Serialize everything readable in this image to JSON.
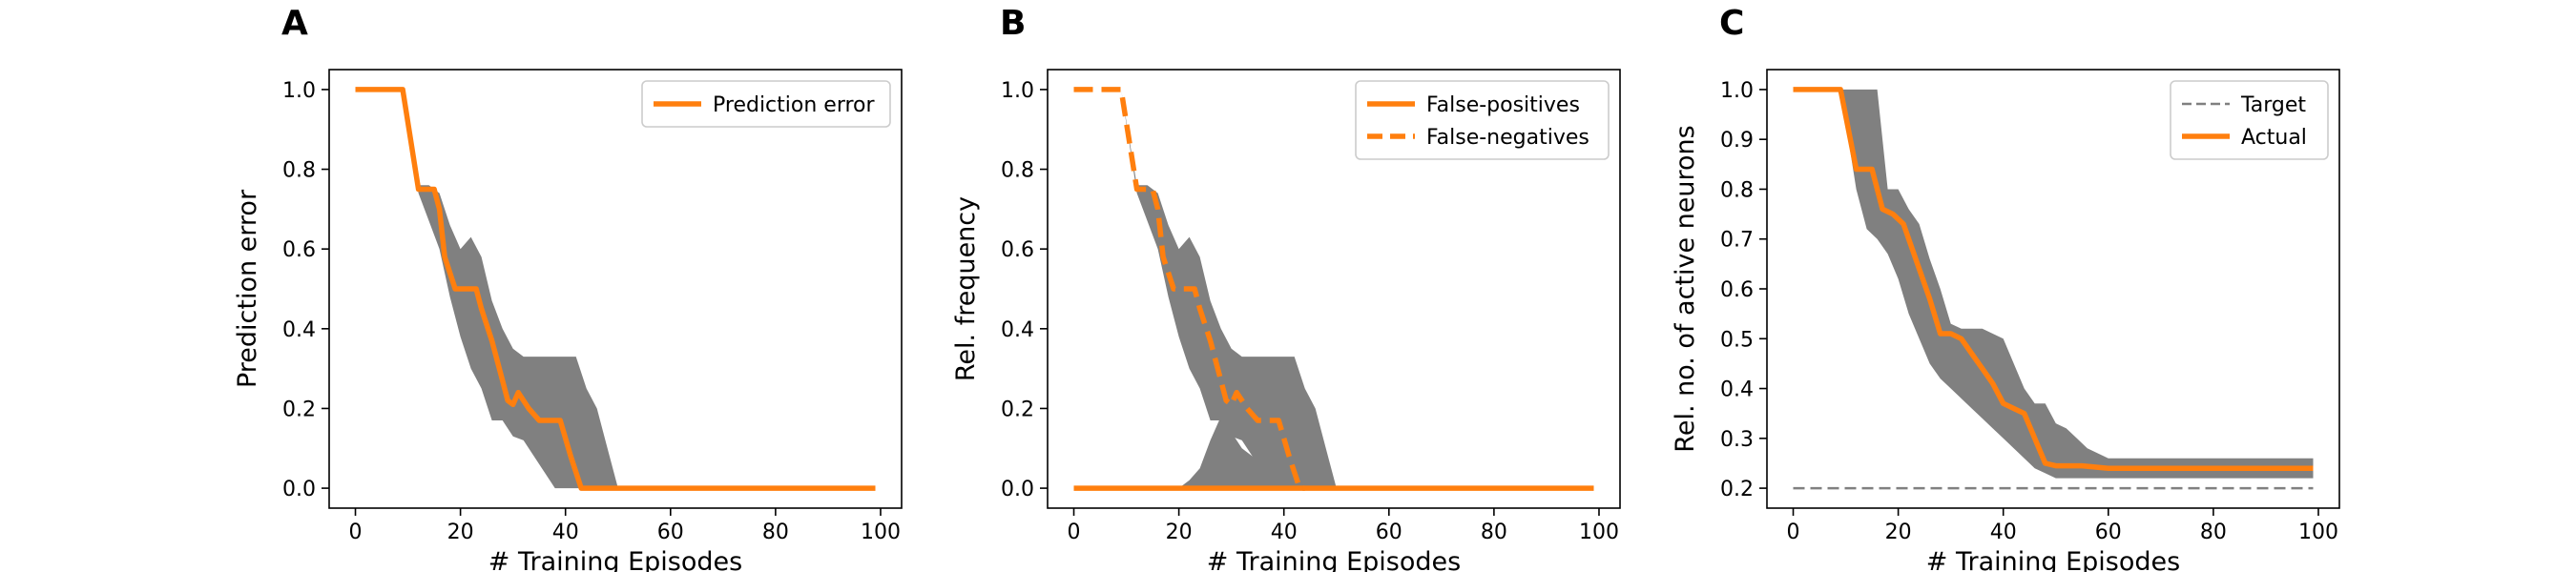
{
  "figure": {
    "panels": [
      "A",
      "B",
      "C"
    ]
  },
  "chart_data": [
    {
      "type": "line",
      "panel_label": "A",
      "xlabel": "# Training Episodes",
      "ylabel": "Prediction error",
      "xlim": [
        -5,
        104
      ],
      "ylim": [
        -0.05,
        1.05
      ],
      "xticks": [
        0,
        20,
        40,
        60,
        80,
        100
      ],
      "yticks": [
        0.0,
        0.2,
        0.4,
        0.6,
        0.8,
        1.0
      ],
      "ytick_labels": [
        "0.0",
        "0.2",
        "0.4",
        "0.6",
        "0.8",
        "1.0"
      ],
      "legend_position": "top-right",
      "colors": {
        "orange": "#ff7f0e",
        "band": "#808080",
        "target": "#808080"
      },
      "series": [
        {
          "name": "Prediction error",
          "style": "solid",
          "color": "#ff7f0e",
          "x": [
            0,
            9,
            12,
            15,
            16,
            17,
            19,
            22,
            23,
            24,
            26,
            28,
            29,
            30,
            31,
            33,
            35,
            37,
            39,
            41,
            43,
            44,
            99
          ],
          "y": [
            1.0,
            1.0,
            0.75,
            0.75,
            0.7,
            0.58,
            0.5,
            0.5,
            0.5,
            0.45,
            0.37,
            0.27,
            0.22,
            0.21,
            0.24,
            0.2,
            0.17,
            0.17,
            0.17,
            0.08,
            0.0,
            0.0,
            0.0
          ]
        }
      ],
      "bands": [
        {
          "x": [
            0,
            9,
            12,
            14,
            16,
            18,
            20,
            22,
            24,
            26,
            28,
            30,
            32,
            34,
            36,
            38,
            40,
            42,
            44,
            46,
            48,
            50,
            52,
            99
          ],
          "upper": [
            1.0,
            1.0,
            0.76,
            0.76,
            0.74,
            0.66,
            0.6,
            0.63,
            0.58,
            0.47,
            0.4,
            0.35,
            0.33,
            0.33,
            0.33,
            0.33,
            0.33,
            0.33,
            0.25,
            0.2,
            0.1,
            0.0,
            0.0,
            0.0
          ],
          "lower": [
            1.0,
            1.0,
            0.74,
            0.67,
            0.6,
            0.48,
            0.38,
            0.3,
            0.25,
            0.17,
            0.17,
            0.13,
            0.12,
            0.08,
            0.04,
            0.0,
            0.0,
            0.0,
            0.0,
            0.0,
            0.0,
            0.0,
            0.0,
            0.0
          ]
        }
      ]
    },
    {
      "type": "line",
      "panel_label": "B",
      "xlabel": "# Training Episodes",
      "ylabel": "Rel. frequency",
      "xlim": [
        -5,
        104
      ],
      "ylim": [
        -0.05,
        1.05
      ],
      "xticks": [
        0,
        20,
        40,
        60,
        80,
        100
      ],
      "yticks": [
        0.0,
        0.2,
        0.4,
        0.6,
        0.8,
        1.0
      ],
      "ytick_labels": [
        "0.0",
        "0.2",
        "0.4",
        "0.6",
        "0.8",
        "1.0"
      ],
      "legend_position": "top-right",
      "series": [
        {
          "name": "False-positives",
          "style": "solid",
          "color": "#ff7f0e",
          "x": [
            0,
            99
          ],
          "y": [
            0.0,
            0.0
          ]
        },
        {
          "name": "False-negatives",
          "style": "dashed",
          "color": "#ff7f0e",
          "x": [
            0,
            9,
            12,
            15,
            16,
            17,
            19,
            22,
            23,
            24,
            26,
            28,
            29,
            30,
            31,
            33,
            35,
            37,
            39,
            41,
            43,
            44
          ],
          "y": [
            1.0,
            1.0,
            0.75,
            0.75,
            0.7,
            0.58,
            0.5,
            0.5,
            0.5,
            0.45,
            0.37,
            0.27,
            0.22,
            0.21,
            0.24,
            0.2,
            0.17,
            0.17,
            0.17,
            0.08,
            0.0,
            0.0
          ]
        }
      ],
      "bands": [
        {
          "x": [
            0,
            9,
            12,
            14,
            16,
            18,
            20,
            22,
            24,
            26,
            28,
            30,
            32,
            34,
            36,
            38,
            40,
            42,
            44,
            46,
            48,
            50,
            52,
            99
          ],
          "upper": [
            1.0,
            1.0,
            0.76,
            0.76,
            0.74,
            0.66,
            0.6,
            0.63,
            0.58,
            0.47,
            0.4,
            0.35,
            0.33,
            0.33,
            0.33,
            0.33,
            0.33,
            0.33,
            0.25,
            0.2,
            0.1,
            0.0,
            0.0,
            0.0
          ],
          "lower": [
            1.0,
            1.0,
            0.74,
            0.67,
            0.6,
            0.48,
            0.38,
            0.3,
            0.25,
            0.17,
            0.17,
            0.13,
            0.12,
            0.08,
            0.04,
            0.0,
            0.0,
            0.0,
            0.0,
            0.0,
            0.0,
            0.0,
            0.0,
            0.0
          ]
        },
        {
          "x": [
            20,
            22,
            24,
            26,
            28,
            30,
            32,
            34,
            36,
            38,
            40,
            42,
            44
          ],
          "upper": [
            0.0,
            0.02,
            0.05,
            0.12,
            0.18,
            0.14,
            0.1,
            0.08,
            0.07,
            0.05,
            0.03,
            0.02,
            0.0
          ],
          "lower": [
            0.0,
            0.0,
            0.0,
            0.0,
            0.0,
            0.0,
            0.0,
            0.0,
            0.0,
            0.0,
            0.0,
            0.0,
            0.0
          ]
        }
      ]
    },
    {
      "type": "line",
      "panel_label": "C",
      "xlabel": "# Training Episodes",
      "ylabel": "Rel. no. of active neurons",
      "xlim": [
        -5,
        104
      ],
      "ylim": [
        0.16,
        1.04
      ],
      "xticks": [
        0,
        20,
        40,
        60,
        80,
        100
      ],
      "yticks": [
        0.2,
        0.3,
        0.4,
        0.5,
        0.6,
        0.7,
        0.8,
        0.9,
        1.0
      ],
      "ytick_labels": [
        "0.2",
        "0.3",
        "0.4",
        "0.5",
        "0.6",
        "0.7",
        "0.8",
        "0.9",
        "1.0"
      ],
      "legend_position": "top-right",
      "series": [
        {
          "name": "Target",
          "style": "dashed",
          "color": "#808080",
          "x": [
            0,
            99
          ],
          "y": [
            0.2,
            0.2
          ]
        },
        {
          "name": "Actual",
          "style": "solid",
          "color": "#ff7f0e",
          "x": [
            0,
            9,
            12,
            15,
            17,
            19,
            21,
            23,
            26,
            28,
            30,
            32,
            34,
            36,
            38,
            40,
            42,
            44,
            46,
            48,
            50,
            55,
            60,
            99
          ],
          "y": [
            1.0,
            1.0,
            0.84,
            0.84,
            0.76,
            0.75,
            0.73,
            0.67,
            0.58,
            0.51,
            0.51,
            0.5,
            0.47,
            0.44,
            0.41,
            0.37,
            0.36,
            0.35,
            0.3,
            0.25,
            0.245,
            0.245,
            0.24,
            0.24
          ]
        }
      ],
      "bands": [
        {
          "x": [
            0,
            9,
            12,
            14,
            16,
            18,
            20,
            22,
            24,
            26,
            28,
            30,
            32,
            34,
            36,
            38,
            40,
            42,
            44,
            46,
            48,
            50,
            52,
            54,
            56,
            58,
            60,
            62,
            99
          ],
          "upper": [
            1.0,
            1.0,
            1.0,
            1.0,
            1.0,
            0.8,
            0.8,
            0.76,
            0.73,
            0.66,
            0.6,
            0.53,
            0.52,
            0.52,
            0.52,
            0.51,
            0.5,
            0.45,
            0.4,
            0.37,
            0.37,
            0.33,
            0.32,
            0.3,
            0.28,
            0.27,
            0.26,
            0.26,
            0.26
          ],
          "lower": [
            1.0,
            1.0,
            0.8,
            0.72,
            0.7,
            0.67,
            0.62,
            0.55,
            0.5,
            0.45,
            0.42,
            0.4,
            0.38,
            0.36,
            0.34,
            0.32,
            0.3,
            0.28,
            0.26,
            0.24,
            0.23,
            0.22,
            0.22,
            0.22,
            0.22,
            0.22,
            0.22,
            0.22,
            0.22
          ]
        }
      ]
    }
  ]
}
